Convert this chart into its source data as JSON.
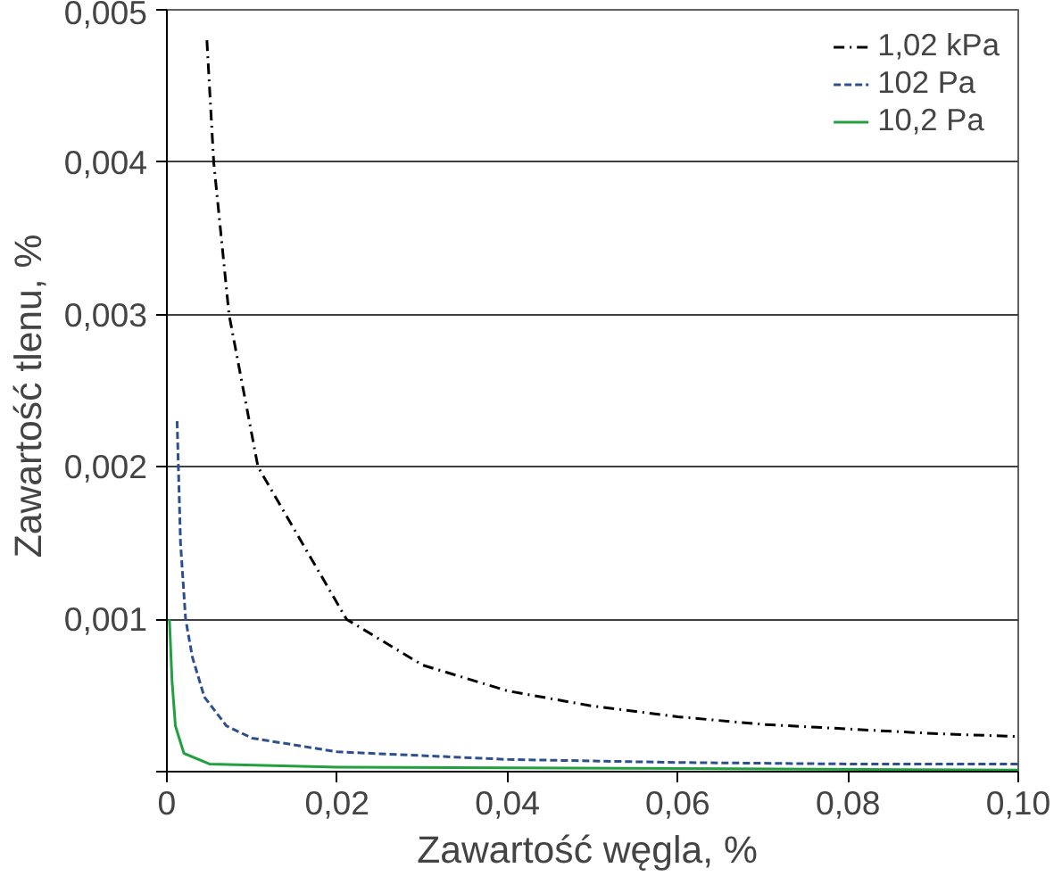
{
  "chart_data": {
    "type": "line",
    "xlabel": "Zawartość węgla,  %",
    "ylabel": "Zawartość tlenu,  %",
    "xlim": [
      0,
      0.1
    ],
    "ylim": [
      0,
      0.005
    ],
    "xticks": [
      0,
      {
        "value": 0.02,
        "label": "0,02"
      },
      {
        "value": 0.04,
        "label": "0,04"
      },
      {
        "value": 0.06,
        "label": "0,06"
      },
      {
        "value": 0.08,
        "label": "0,08"
      },
      {
        "value": 0.1,
        "label": "0,10"
      }
    ],
    "yticks": [
      {
        "value": 0,
        "label": null
      },
      {
        "value": 0.001,
        "label": "0,001"
      },
      {
        "value": 0.002,
        "label": "0,002"
      },
      {
        "value": 0.003,
        "label": "0,003"
      },
      {
        "value": 0.004,
        "label": "0,004"
      },
      {
        "value": 0.005,
        "label": "0,005"
      }
    ],
    "grid": "y",
    "legend": "top right",
    "series": [
      {
        "name": "1,02 kPa",
        "color": "#000000",
        "line_style": "dashdot",
        "x": [
          0.0047,
          0.0055,
          0.0073,
          0.0107,
          0.0211,
          0.03,
          0.04,
          0.05,
          0.06,
          0.07,
          0.08,
          0.09,
          0.1
        ],
        "values": [
          0.0048,
          0.004,
          0.003,
          0.002,
          0.001,
          0.0007,
          0.00053,
          0.00043,
          0.00036,
          0.00031,
          0.00028,
          0.00025,
          0.00023
        ]
      },
      {
        "name": "102 Pa",
        "color": "#2e4f8f",
        "line_style": "dashed",
        "x": [
          0.0012,
          0.0016,
          0.0022,
          0.003,
          0.0044,
          0.007,
          0.01,
          0.02,
          0.04,
          0.06,
          0.08,
          0.1
        ],
        "values": [
          0.0023,
          0.0015,
          0.001,
          0.00075,
          0.00049,
          0.0003,
          0.00022,
          0.00013,
          8e-05,
          6e-05,
          5e-05,
          5e-05
        ]
      },
      {
        "name": "10,2 Pa",
        "color": "#22a040",
        "line_style": "solid",
        "x": [
          0.0003,
          0.0006,
          0.001,
          0.002,
          0.005,
          0.02,
          0.1
        ],
        "values": [
          0.001,
          0.0006,
          0.0003,
          0.00012,
          5e-05,
          3e-05,
          1e-05
        ]
      }
    ]
  }
}
